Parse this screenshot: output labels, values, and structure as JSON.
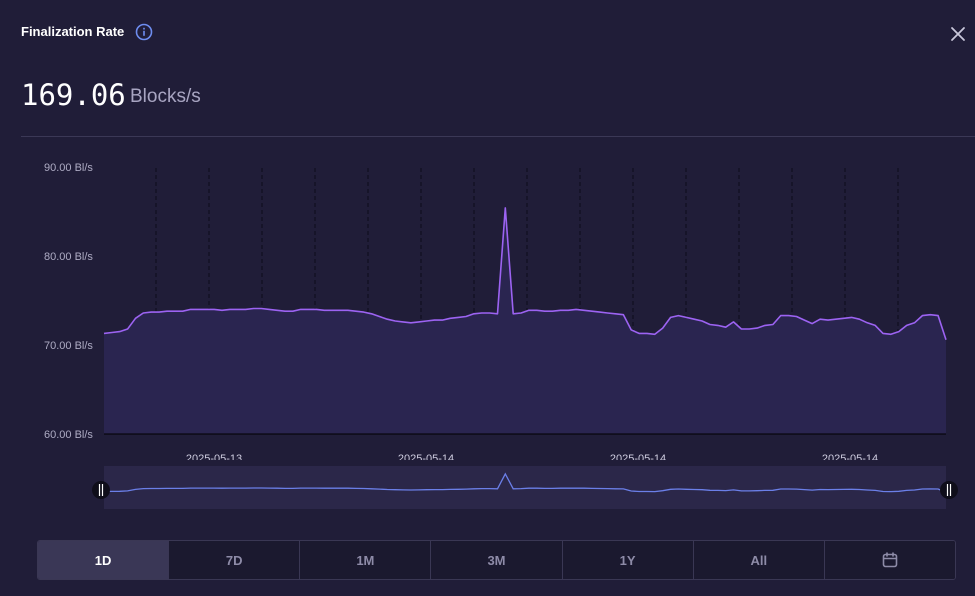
{
  "header": {
    "title": "Finalization Rate",
    "value": "169.06",
    "unit": "Blocks/s"
  },
  "icons": {
    "info": "info-icon",
    "close": "close-icon",
    "calendar": "calendar-icon"
  },
  "colors": {
    "line": "#9c63f2",
    "area": "#2a2550",
    "navigator_line": "#6b7fe8",
    "background": "#201d38"
  },
  "chart_data": {
    "type": "area",
    "y_ticks": [
      "90.00 Bl/s",
      "80.00 Bl/s",
      "70.00 Bl/s",
      "60.00 Bl/s"
    ],
    "ylim": [
      60,
      90
    ],
    "x_tick_labels": [
      "2025-05-13",
      "2025-05-14",
      "2025-05-14",
      "2025-05-14"
    ],
    "grid": "vertical dashed",
    "series": [
      {
        "values": [
          71.3,
          71.4,
          71.5,
          71.8,
          73.0,
          73.6,
          73.7,
          73.7,
          73.8,
          73.8,
          73.8,
          74.0,
          74.0,
          74.0,
          74.0,
          73.9,
          74.0,
          74.0,
          74.0,
          74.1,
          74.1,
          74.0,
          73.9,
          73.8,
          73.8,
          74.0,
          74.0,
          74.0,
          73.9,
          73.9,
          73.9,
          73.9,
          73.8,
          73.7,
          73.5,
          73.2,
          72.9,
          72.7,
          72.6,
          72.5,
          72.6,
          72.7,
          72.8,
          72.8,
          73.0,
          73.1,
          73.2,
          73.5,
          73.6,
          73.6,
          73.5,
          85.4,
          73.5,
          73.6,
          73.9,
          73.9,
          73.8,
          73.8,
          73.9,
          73.9,
          74.0,
          73.9,
          73.8,
          73.7,
          73.6,
          73.5,
          73.4,
          71.7,
          71.3,
          71.3,
          71.2,
          71.9,
          73.1,
          73.3,
          73.1,
          72.9,
          72.7,
          72.3,
          72.2,
          72.0,
          72.6,
          71.8,
          71.8,
          71.9,
          72.2,
          72.3,
          73.3,
          73.3,
          73.2,
          72.8,
          72.4,
          72.9,
          72.8,
          72.9,
          73.0,
          73.1,
          72.9,
          72.5,
          72.2,
          71.3,
          71.2,
          71.5,
          72.2,
          72.5,
          73.3,
          73.4,
          73.3,
          70.6
        ]
      }
    ]
  },
  "range_buttons": [
    {
      "label": "1D",
      "active": true
    },
    {
      "label": "7D",
      "active": false
    },
    {
      "label": "1M",
      "active": false
    },
    {
      "label": "3M",
      "active": false
    },
    {
      "label": "1Y",
      "active": false
    },
    {
      "label": "All",
      "active": false
    }
  ]
}
